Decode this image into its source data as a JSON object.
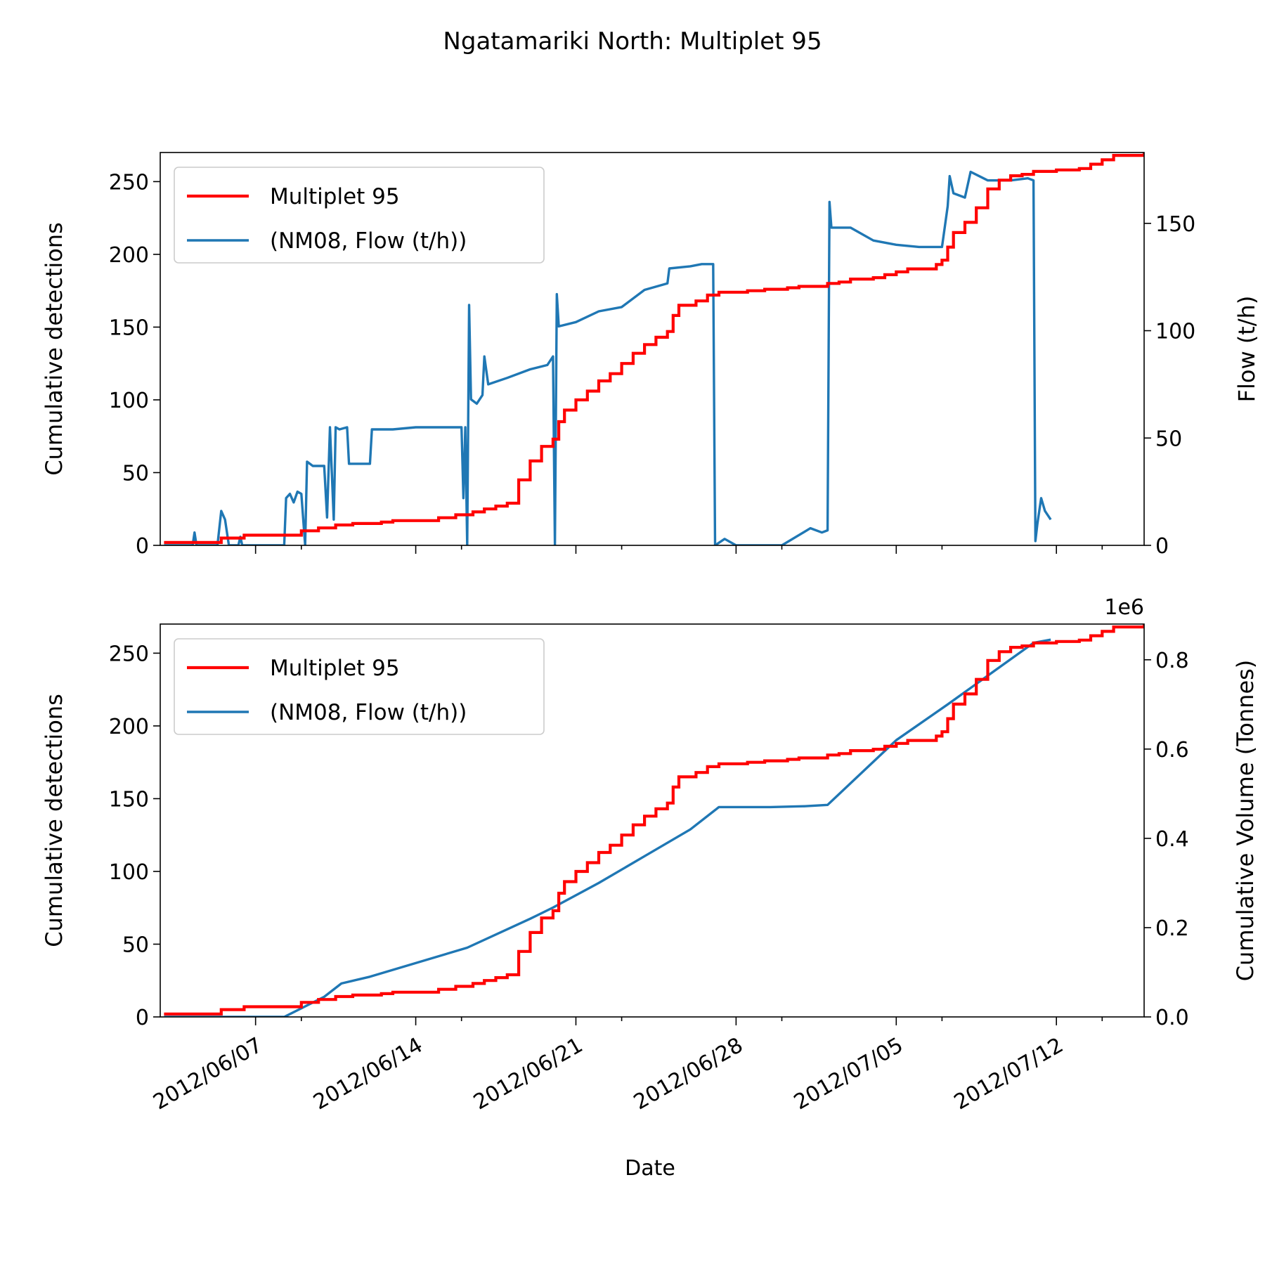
{
  "chart_data": {
    "type": "line",
    "title": "Ngatamariki North: Multiplet 95",
    "xlabel": "Date",
    "xlim": [
      "2012-06-02T20:00",
      "2012-07-15T20:00"
    ],
    "x_ticks": [
      {
        "date": "2012-06-07",
        "label": "2012/06/07"
      },
      {
        "date": "2012-06-14",
        "label": "2012/06/14"
      },
      {
        "date": "2012-06-21",
        "label": "2012/06/21"
      },
      {
        "date": "2012-06-28",
        "label": "2012/06/28"
      },
      {
        "date": "2012-07-05",
        "label": "2012/07/05"
      },
      {
        "date": "2012-07-12",
        "label": "2012/07/12"
      }
    ],
    "minor_x_ticks": [
      "2012-06-09",
      "2012-06-16",
      "2012-06-23",
      "2012-06-30",
      "2012-07-07",
      "2012-07-14"
    ],
    "grid": false,
    "legend_position": "upper-left",
    "colors": {
      "detections": "#ff0000",
      "flow": "#1f77b4"
    },
    "detections": {
      "name": "Multiplet 95",
      "points": [
        [
          "2012-06-03T00:00",
          2
        ],
        [
          "2012-06-05T06:00",
          2
        ],
        [
          "2012-06-05T12:00",
          5
        ],
        [
          "2012-06-06T06:00",
          5
        ],
        [
          "2012-06-06T12:00",
          7
        ],
        [
          "2012-06-08T18:00",
          7
        ],
        [
          "2012-06-09T00:00",
          10
        ],
        [
          "2012-06-09T18:00",
          12
        ],
        [
          "2012-06-10T12:00",
          14
        ],
        [
          "2012-06-11T06:00",
          15
        ],
        [
          "2012-06-12T12:00",
          16
        ],
        [
          "2012-06-13T00:00",
          17
        ],
        [
          "2012-06-14T12:00",
          17
        ],
        [
          "2012-06-15T00:00",
          19
        ],
        [
          "2012-06-15T18:00",
          21
        ],
        [
          "2012-06-16T12:00",
          23
        ],
        [
          "2012-06-17T00:00",
          25
        ],
        [
          "2012-06-17T12:00",
          27
        ],
        [
          "2012-06-18T00:00",
          29
        ],
        [
          "2012-06-18T12:00",
          45
        ],
        [
          "2012-06-19T00:00",
          58
        ],
        [
          "2012-06-19T12:00",
          68
        ],
        [
          "2012-06-20T00:00",
          73
        ],
        [
          "2012-06-20T06:00",
          85
        ],
        [
          "2012-06-20T12:00",
          93
        ],
        [
          "2012-06-21T00:00",
          100
        ],
        [
          "2012-06-21T12:00",
          106
        ],
        [
          "2012-06-22T00:00",
          113
        ],
        [
          "2012-06-22T12:00",
          118
        ],
        [
          "2012-06-23T00:00",
          125
        ],
        [
          "2012-06-23T12:00",
          132
        ],
        [
          "2012-06-24T00:00",
          138
        ],
        [
          "2012-06-24T12:00",
          143
        ],
        [
          "2012-06-25T00:00",
          147
        ],
        [
          "2012-06-25T06:00",
          158
        ],
        [
          "2012-06-25T12:00",
          165
        ],
        [
          "2012-06-26T06:00",
          168
        ],
        [
          "2012-06-26T18:00",
          172
        ],
        [
          "2012-06-27T06:00",
          174
        ],
        [
          "2012-06-28T12:00",
          175
        ],
        [
          "2012-06-29T06:00",
          176
        ],
        [
          "2012-06-30T06:00",
          177
        ],
        [
          "2012-06-30T18:00",
          178
        ],
        [
          "2012-07-02T00:00",
          180
        ],
        [
          "2012-07-02T12:00",
          181
        ],
        [
          "2012-07-03T00:00",
          183
        ],
        [
          "2012-07-04T00:00",
          184
        ],
        [
          "2012-07-04T12:00",
          186
        ],
        [
          "2012-07-05T00:00",
          188
        ],
        [
          "2012-07-05T12:00",
          190
        ],
        [
          "2012-07-06T06:00",
          190
        ],
        [
          "2012-07-06T18:00",
          193
        ],
        [
          "2012-07-07T00:00",
          196
        ],
        [
          "2012-07-07T06:00",
          205
        ],
        [
          "2012-07-07T12:00",
          215
        ],
        [
          "2012-07-08T00:00",
          222
        ],
        [
          "2012-07-08T12:00",
          232
        ],
        [
          "2012-07-09T00:00",
          245
        ],
        [
          "2012-07-09T12:00",
          251
        ],
        [
          "2012-07-10T00:00",
          254
        ],
        [
          "2012-07-10T12:00",
          255
        ],
        [
          "2012-07-11T00:00",
          257
        ],
        [
          "2012-07-12T00:00",
          258
        ],
        [
          "2012-07-13T00:00",
          259
        ],
        [
          "2012-07-13T12:00",
          262
        ],
        [
          "2012-07-14T00:00",
          265
        ],
        [
          "2012-07-14T12:00",
          268
        ],
        [
          "2012-07-15T20:00",
          270
        ]
      ]
    },
    "panels": [
      {
        "ylabel_left": "Cumulative detections",
        "ylim_left": [
          0,
          270
        ],
        "yticks_left": [
          0,
          50,
          100,
          150,
          200,
          250
        ],
        "ylabel_right": "Flow (t/h)",
        "ylim_right": [
          0,
          183
        ],
        "yticks_right": [
          0,
          50,
          100,
          150
        ],
        "offset_text": "",
        "show_x_tick_labels": false,
        "legend": [
          "Multiplet 95",
          "(NM08, Flow (t/h))"
        ],
        "right_series": {
          "name": "(NM08, Flow (t/h))",
          "points": [
            [
              "2012-06-03T00:00",
              0
            ],
            [
              "2012-06-04T06:00",
              0
            ],
            [
              "2012-06-04T08:00",
              6
            ],
            [
              "2012-06-04T10:00",
              0
            ],
            [
              "2012-06-05T08:00",
              0
            ],
            [
              "2012-06-05T12:00",
              16
            ],
            [
              "2012-06-05T16:00",
              12
            ],
            [
              "2012-06-05T20:00",
              0
            ],
            [
              "2012-06-06T06:00",
              0
            ],
            [
              "2012-06-06T08:00",
              4
            ],
            [
              "2012-06-06T10:00",
              0
            ],
            [
              "2012-06-08T06:00",
              0
            ],
            [
              "2012-06-08T08:00",
              22
            ],
            [
              "2012-06-08T12:00",
              24
            ],
            [
              "2012-06-08T16:00",
              20
            ],
            [
              "2012-06-08T20:00",
              25
            ],
            [
              "2012-06-09T00:00",
              24
            ],
            [
              "2012-06-09T04:00",
              0
            ],
            [
              "2012-06-09T06:00",
              39
            ],
            [
              "2012-06-09T12:00",
              37
            ],
            [
              "2012-06-10T00:00",
              37
            ],
            [
              "2012-06-10T03:00",
              13
            ],
            [
              "2012-06-10T06:00",
              55
            ],
            [
              "2012-06-10T10:00",
              12
            ],
            [
              "2012-06-10T12:00",
              55
            ],
            [
              "2012-06-10T16:00",
              54
            ],
            [
              "2012-06-11T00:00",
              55
            ],
            [
              "2012-06-11T02:00",
              38
            ],
            [
              "2012-06-12T00:00",
              38
            ],
            [
              "2012-06-12T02:00",
              54
            ],
            [
              "2012-06-13T00:00",
              54
            ],
            [
              "2012-06-14T00:00",
              55
            ],
            [
              "2012-06-15T00:00",
              55
            ],
            [
              "2012-06-15T12:00",
              55
            ],
            [
              "2012-06-16T00:00",
              55
            ],
            [
              "2012-06-16T02:00",
              22
            ],
            [
              "2012-06-16T04:00",
              55
            ],
            [
              "2012-06-16T06:00",
              0
            ],
            [
              "2012-06-16T08:00",
              112
            ],
            [
              "2012-06-16T10:00",
              68
            ],
            [
              "2012-06-16T16:00",
              66
            ],
            [
              "2012-06-16T22:00",
              70
            ],
            [
              "2012-06-17T00:00",
              88
            ],
            [
              "2012-06-17T04:00",
              75
            ],
            [
              "2012-06-18T00:00",
              78
            ],
            [
              "2012-06-19T00:00",
              82
            ],
            [
              "2012-06-19T18:00",
              84
            ],
            [
              "2012-06-20T00:00",
              88
            ],
            [
              "2012-06-20T02:00",
              0
            ],
            [
              "2012-06-20T04:00",
              117
            ],
            [
              "2012-06-20T06:00",
              102
            ],
            [
              "2012-06-21T00:00",
              104
            ],
            [
              "2012-06-22T00:00",
              109
            ],
            [
              "2012-06-23T00:00",
              111
            ],
            [
              "2012-06-24T00:00",
              119
            ],
            [
              "2012-06-25T00:00",
              122
            ],
            [
              "2012-06-25T02:00",
              129
            ],
            [
              "2012-06-26T00:00",
              130
            ],
            [
              "2012-06-26T12:00",
              131
            ],
            [
              "2012-06-27T00:00",
              131
            ],
            [
              "2012-06-27T02:00",
              0
            ],
            [
              "2012-06-27T12:00",
              3
            ],
            [
              "2012-06-28T00:00",
              0
            ],
            [
              "2012-06-29T00:00",
              0
            ],
            [
              "2012-06-30T00:00",
              0
            ],
            [
              "2012-07-01T06:00",
              8
            ],
            [
              "2012-07-01T18:00",
              6
            ],
            [
              "2012-07-02T00:00",
              7
            ],
            [
              "2012-07-02T02:00",
              160
            ],
            [
              "2012-07-02T04:00",
              148
            ],
            [
              "2012-07-03T00:00",
              148
            ],
            [
              "2012-07-04T00:00",
              142
            ],
            [
              "2012-07-05T00:00",
              140
            ],
            [
              "2012-07-06T00:00",
              139
            ],
            [
              "2012-07-07T00:00",
              139
            ],
            [
              "2012-07-07T06:00",
              158
            ],
            [
              "2012-07-07T08:00",
              172
            ],
            [
              "2012-07-07T12:00",
              164
            ],
            [
              "2012-07-08T00:00",
              162
            ],
            [
              "2012-07-08T06:00",
              174
            ],
            [
              "2012-07-09T00:00",
              170
            ],
            [
              "2012-07-10T00:00",
              170
            ],
            [
              "2012-07-10T18:00",
              171
            ],
            [
              "2012-07-11T00:00",
              170
            ],
            [
              "2012-07-11T02:00",
              2
            ],
            [
              "2012-07-11T04:00",
              10
            ],
            [
              "2012-07-11T08:00",
              22
            ],
            [
              "2012-07-11T12:00",
              16
            ],
            [
              "2012-07-11T18:00",
              12
            ]
          ]
        }
      },
      {
        "ylabel_left": "Cumulative detections",
        "ylim_left": [
          0,
          270
        ],
        "yticks_left": [
          0,
          50,
          100,
          150,
          200,
          250
        ],
        "ylabel_right": "Cumulative Volume (Tonnes)",
        "ylim_right": [
          0,
          880000
        ],
        "yticks_right": [
          0,
          200000,
          400000,
          600000,
          800000
        ],
        "ytick_labels_right": [
          "0.0",
          "0.2",
          "0.4",
          "0.6",
          "0.8"
        ],
        "offset_text": "1e6",
        "show_x_tick_labels": true,
        "legend": [
          "Multiplet 95",
          "(NM08, Flow (t/h))"
        ],
        "right_series": {
          "name": "(NM08, Flow (t/h))",
          "points": [
            [
              "2012-06-03T00:00",
              0
            ],
            [
              "2012-06-08T06:00",
              0
            ],
            [
              "2012-06-10T00:00",
              45000
            ],
            [
              "2012-06-10T18:00",
              75000
            ],
            [
              "2012-06-12T00:00",
              90000
            ],
            [
              "2012-06-16T06:00",
              155000
            ],
            [
              "2012-06-19T00:00",
              220000
            ],
            [
              "2012-06-20T00:00",
              245000
            ],
            [
              "2012-06-22T00:00",
              300000
            ],
            [
              "2012-06-24T00:00",
              360000
            ],
            [
              "2012-06-26T00:00",
              420000
            ],
            [
              "2012-06-27T06:00",
              470000
            ],
            [
              "2012-06-29T12:00",
              470000
            ],
            [
              "2012-07-01T00:00",
              472000
            ],
            [
              "2012-07-02T00:00",
              475000
            ],
            [
              "2012-07-05T00:00",
              620000
            ],
            [
              "2012-07-07T06:00",
              700000
            ],
            [
              "2012-07-11T00:00",
              838000
            ],
            [
              "2012-07-11T18:00",
              845000
            ]
          ]
        }
      }
    ]
  }
}
